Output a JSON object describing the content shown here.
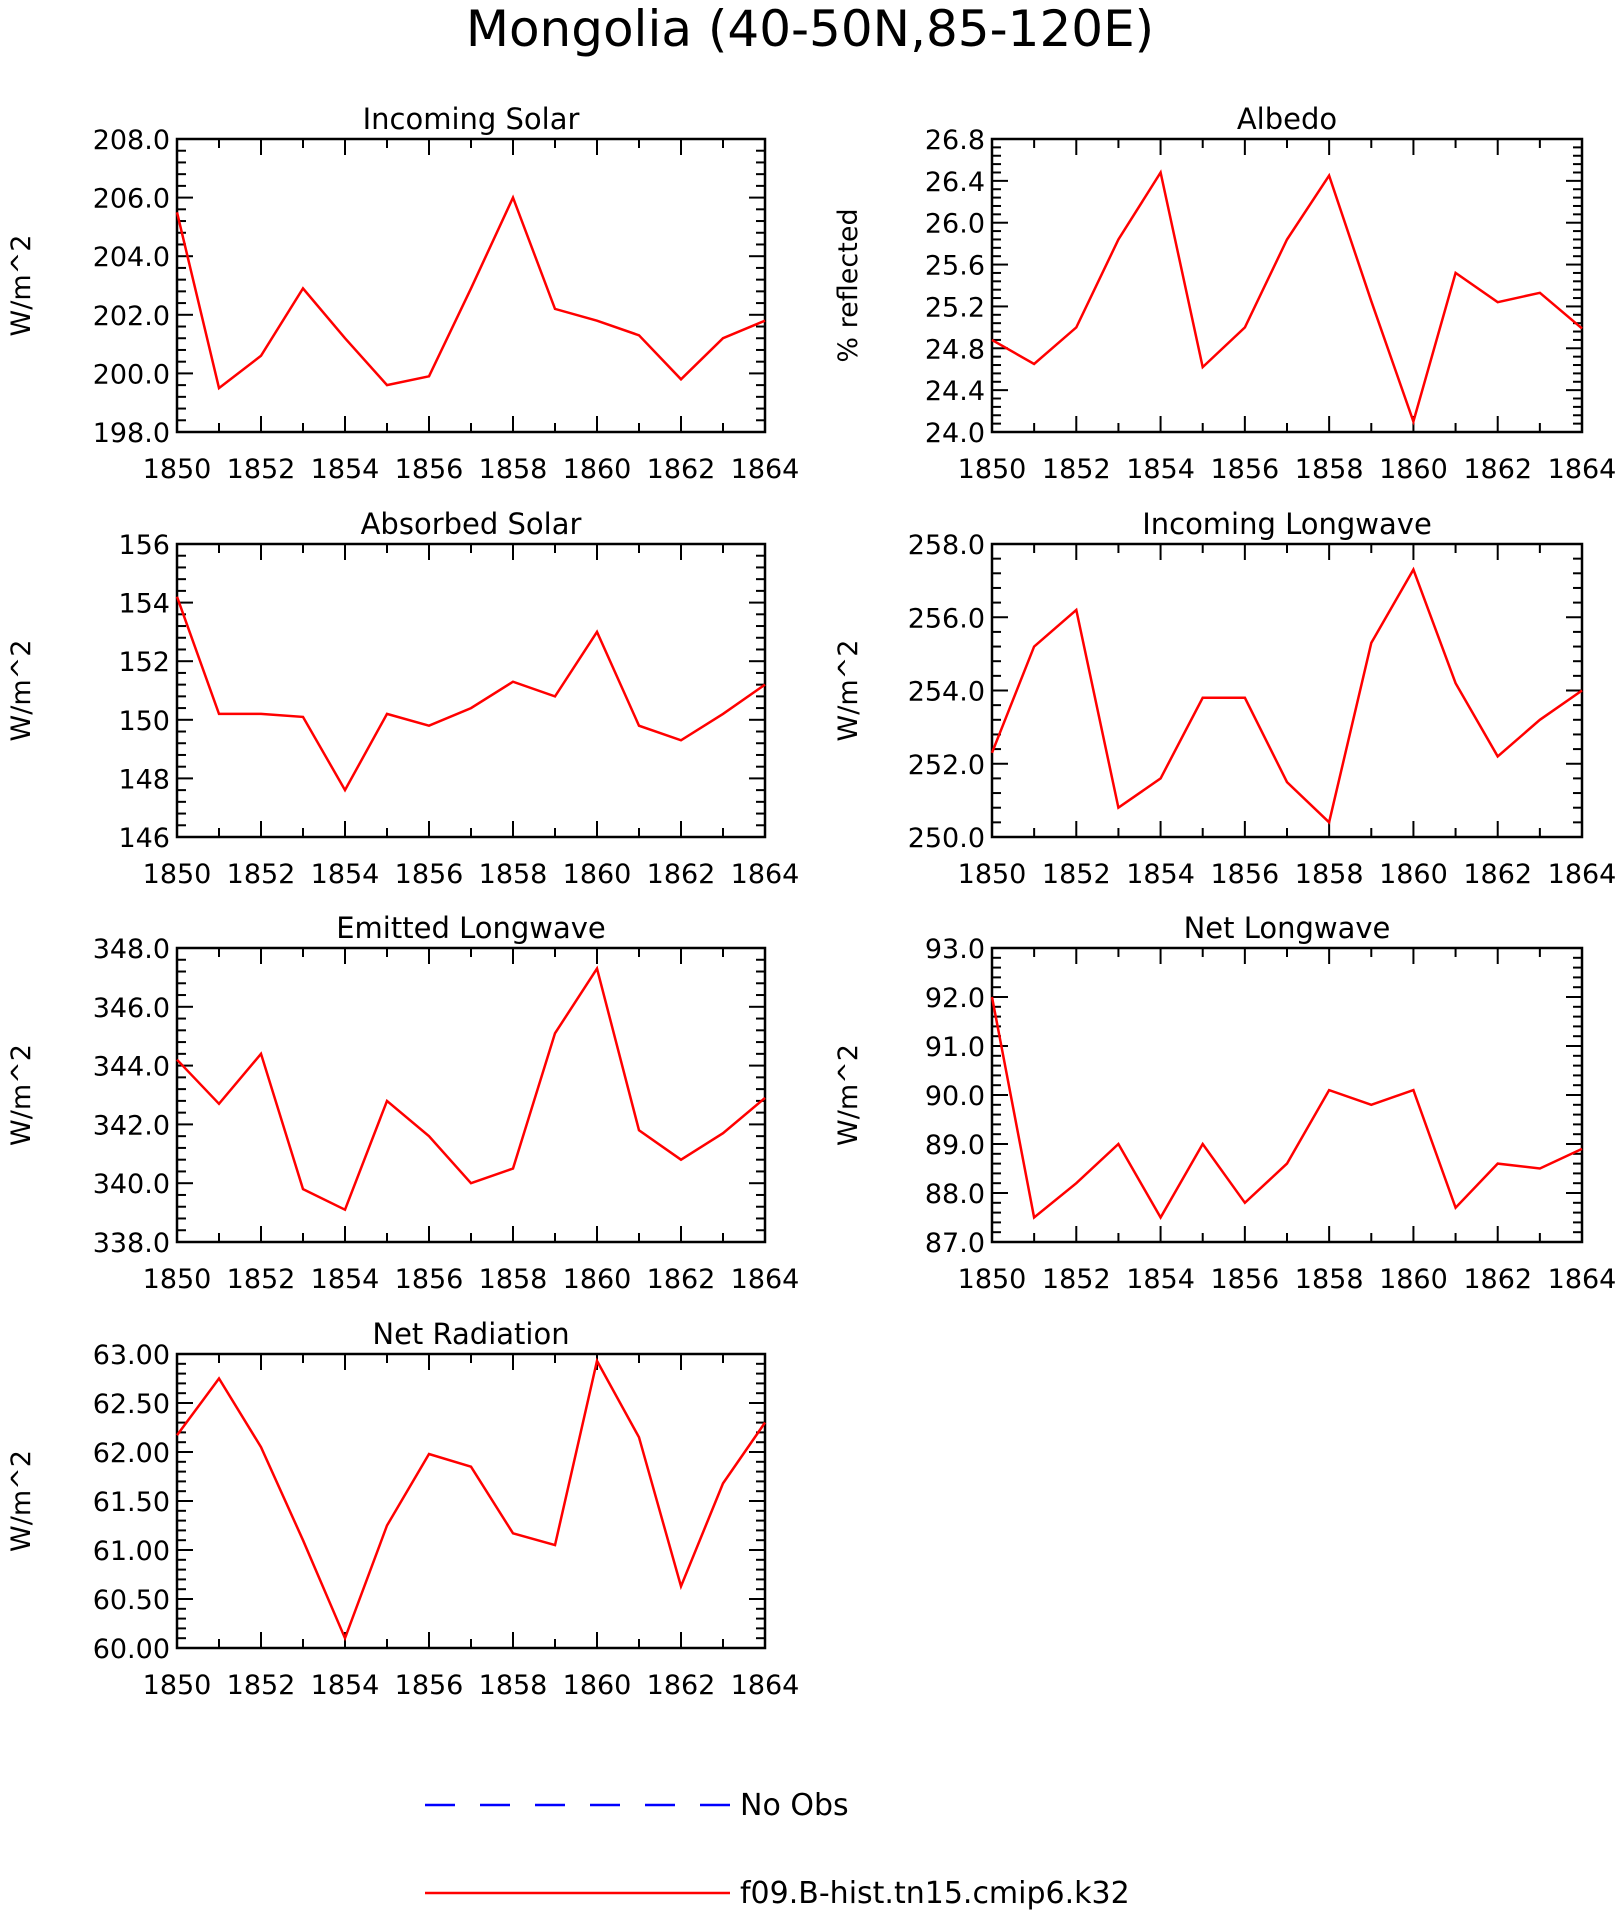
{
  "title": "Mongolia (40-50N,85-120E)",
  "colors": {
    "model": "#ff0000",
    "obs": "#0000ff",
    "axis": "#000000"
  },
  "legend": [
    {
      "label": "No Obs",
      "style": "dashed",
      "color": "#0000ff"
    },
    {
      "label": "f09.B-hist.tn15.cmip6.k32",
      "style": "solid",
      "color": "#ff0000"
    }
  ],
  "chart_data": [
    {
      "type": "line",
      "title": "Incoming Solar",
      "ylabel": "W/m^2",
      "x": [
        1850,
        1851,
        1852,
        1853,
        1854,
        1855,
        1856,
        1857,
        1858,
        1859,
        1860,
        1861,
        1862,
        1863,
        1864
      ],
      "xlim": [
        1850,
        1864
      ],
      "xticks": [
        "1850",
        "1852",
        "1854",
        "1856",
        "1858",
        "1860",
        "1862",
        "1864"
      ],
      "ylim": [
        198.0,
        208.0
      ],
      "yticks": [
        "198.0",
        "200.0",
        "202.0",
        "204.0",
        "206.0",
        "208.0"
      ],
      "series": [
        {
          "values": [
            205.5,
            199.5,
            200.6,
            202.9,
            201.2,
            199.6,
            199.9,
            202.9,
            206.0,
            202.2,
            201.8,
            201.3,
            199.8,
            201.2,
            201.8
          ]
        }
      ]
    },
    {
      "type": "line",
      "title": "Albedo",
      "ylabel": "% reflected",
      "x": [
        1850,
        1851,
        1852,
        1853,
        1854,
        1855,
        1856,
        1857,
        1858,
        1859,
        1860,
        1861,
        1862,
        1863,
        1864
      ],
      "xlim": [
        1850,
        1864
      ],
      "xticks": [
        "1850",
        "1852",
        "1854",
        "1856",
        "1858",
        "1860",
        "1862",
        "1864"
      ],
      "ylim": [
        24.0,
        26.8
      ],
      "yticks": [
        "24.0",
        "24.4",
        "24.8",
        "25.2",
        "25.6",
        "26.0",
        "26.4",
        "26.8"
      ],
      "series": [
        {
          "values": [
            24.88,
            24.65,
            25.0,
            25.84,
            26.48,
            24.62,
            25.0,
            25.84,
            26.45,
            25.25,
            24.1,
            25.52,
            25.24,
            25.33,
            24.99
          ]
        }
      ]
    },
    {
      "type": "line",
      "title": "Absorbed Solar",
      "ylabel": "W/m^2",
      "x": [
        1850,
        1851,
        1852,
        1853,
        1854,
        1855,
        1856,
        1857,
        1858,
        1859,
        1860,
        1861,
        1862,
        1863,
        1864
      ],
      "xlim": [
        1850,
        1864
      ],
      "xticks": [
        "1850",
        "1852",
        "1854",
        "1856",
        "1858",
        "1860",
        "1862",
        "1864"
      ],
      "ylim": [
        146,
        156
      ],
      "yticks": [
        "146",
        "148",
        "150",
        "152",
        "154",
        "156"
      ],
      "series": [
        {
          "values": [
            154.2,
            150.2,
            150.2,
            150.1,
            147.6,
            150.2,
            149.8,
            150.4,
            151.3,
            150.8,
            153.0,
            149.8,
            149.3,
            150.2,
            151.2
          ]
        }
      ]
    },
    {
      "type": "line",
      "title": "Incoming Longwave",
      "ylabel": "W/m^2",
      "x": [
        1850,
        1851,
        1852,
        1853,
        1854,
        1855,
        1856,
        1857,
        1858,
        1859,
        1860,
        1861,
        1862,
        1863,
        1864
      ],
      "xlim": [
        1850,
        1864
      ],
      "xticks": [
        "1850",
        "1852",
        "1854",
        "1856",
        "1858",
        "1860",
        "1862",
        "1864"
      ],
      "ylim": [
        250.0,
        258.0
      ],
      "yticks": [
        "250.0",
        "252.0",
        "254.0",
        "256.0",
        "258.0"
      ],
      "series": [
        {
          "values": [
            252.3,
            255.2,
            256.2,
            250.8,
            251.6,
            253.8,
            253.8,
            251.5,
            250.4,
            255.3,
            257.3,
            254.2,
            252.2,
            253.2,
            254.0
          ]
        }
      ]
    },
    {
      "type": "line",
      "title": "Emitted Longwave",
      "ylabel": "W/m^2",
      "x": [
        1850,
        1851,
        1852,
        1853,
        1854,
        1855,
        1856,
        1857,
        1858,
        1859,
        1860,
        1861,
        1862,
        1863,
        1864
      ],
      "xlim": [
        1850,
        1864
      ],
      "xticks": [
        "1850",
        "1852",
        "1854",
        "1856",
        "1858",
        "1860",
        "1862",
        "1864"
      ],
      "ylim": [
        338.0,
        348.0
      ],
      "yticks": [
        "338.0",
        "340.0",
        "342.0",
        "344.0",
        "346.0",
        "348.0"
      ],
      "series": [
        {
          "values": [
            344.2,
            342.7,
            344.4,
            339.8,
            339.1,
            342.8,
            341.6,
            340.0,
            340.5,
            345.1,
            347.3,
            341.8,
            340.8,
            341.7,
            342.9
          ]
        }
      ]
    },
    {
      "type": "line",
      "title": "Net Longwave",
      "ylabel": "W/m^2",
      "x": [
        1850,
        1851,
        1852,
        1853,
        1854,
        1855,
        1856,
        1857,
        1858,
        1859,
        1860,
        1861,
        1862,
        1863,
        1864
      ],
      "xlim": [
        1850,
        1864
      ],
      "xticks": [
        "1850",
        "1852",
        "1854",
        "1856",
        "1858",
        "1860",
        "1862",
        "1864"
      ],
      "ylim": [
        87.0,
        93.0
      ],
      "yticks": [
        "87.0",
        "88.0",
        "89.0",
        "90.0",
        "91.0",
        "92.0",
        "93.0"
      ],
      "series": [
        {
          "values": [
            92.0,
            87.5,
            88.2,
            89.0,
            87.5,
            89.0,
            87.8,
            88.6,
            90.1,
            89.8,
            90.1,
            87.7,
            88.6,
            88.5,
            88.9
          ]
        }
      ]
    },
    {
      "type": "line",
      "title": "Net Radiation",
      "ylabel": "W/m^2",
      "x": [
        1850,
        1851,
        1852,
        1853,
        1854,
        1855,
        1856,
        1857,
        1858,
        1859,
        1860,
        1861,
        1862,
        1863,
        1864
      ],
      "xlim": [
        1850,
        1864
      ],
      "xticks": [
        "1850",
        "1852",
        "1854",
        "1856",
        "1858",
        "1860",
        "1862",
        "1864"
      ],
      "ylim": [
        60.0,
        63.0
      ],
      "yticks": [
        "60.00",
        "60.50",
        "61.00",
        "61.50",
        "62.00",
        "62.50",
        "63.00"
      ],
      "series": [
        {
          "values": [
            62.17,
            62.75,
            62.05,
            61.1,
            60.1,
            61.25,
            61.98,
            61.85,
            61.17,
            61.05,
            62.93,
            62.15,
            60.63,
            61.68,
            62.3
          ]
        }
      ]
    }
  ]
}
